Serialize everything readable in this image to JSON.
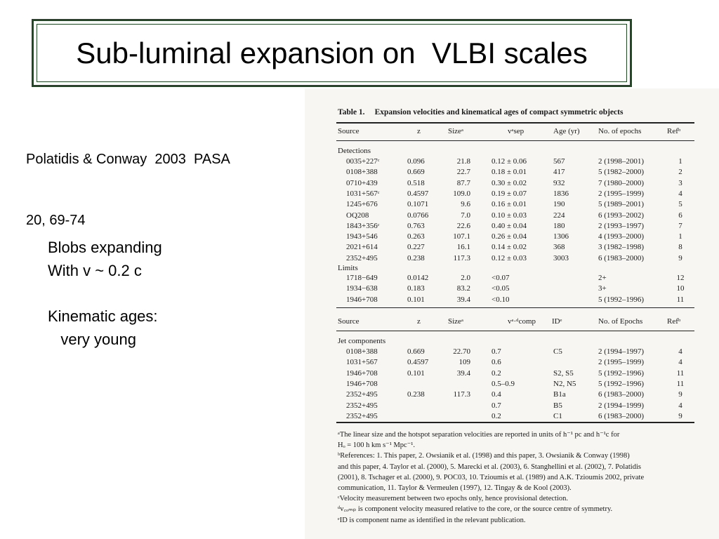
{
  "slide": {
    "title": "Sub-luminal expansion on  VLBI scales",
    "citation": [
      "Polatidis & Conway  2003  PASA",
      "20, 69-74"
    ],
    "bullets_a": [
      "Blobs expanding",
      "With v ~ 0.2 c"
    ],
    "bullets_b": [
      "Kinematic ages:",
      "   very young"
    ]
  },
  "table": {
    "caption_label": "Table 1.",
    "caption_text": "Expansion velocities and kinematical ages of compact symmetric objects",
    "header1": [
      "Source",
      "z",
      "Sizeᵃ",
      "vᵃsep",
      "Age (yr)",
      "No. of epochs",
      "Refᵇ"
    ],
    "section_detections": "Detections",
    "detections": [
      [
        "0035+227ᶜ",
        "0.096",
        "21.8",
        "0.12 ± 0.06",
        "567",
        "2 (1998–2001)",
        "1"
      ],
      [
        "0108+388",
        "0.669",
        "22.7",
        "0.18 ± 0.01",
        "417",
        "5 (1982–2000)",
        "2"
      ],
      [
        "0710+439",
        "0.518",
        "87.7",
        "0.30 ± 0.02",
        "932",
        "7 (1980–2000)",
        "3"
      ],
      [
        "1031+567ᶜ",
        "0.4597",
        "109.0",
        "0.19 ± 0.07",
        "1836",
        "2 (1995–1999)",
        "4"
      ],
      [
        "1245+676",
        "0.1071",
        "9.6",
        "0.16 ± 0.01",
        "190",
        "5 (1989–2001)",
        "5"
      ],
      [
        "OQ208",
        "0.0766",
        "7.0",
        "0.10 ± 0.03",
        "224",
        "6 (1993–2002)",
        "6"
      ],
      [
        "1843+356ᶜ",
        "0.763",
        "22.6",
        "0.40 ± 0.04",
        "180",
        "2 (1993–1997)",
        "7"
      ],
      [
        "1943+546",
        "0.263",
        "107.1",
        "0.26 ± 0.04",
        "1306",
        "4 (1993–2000)",
        "1"
      ],
      [
        "2021+614",
        "0.227",
        "16.1",
        "0.14 ± 0.02",
        "368",
        "3 (1982–1998)",
        "8"
      ],
      [
        "2352+495",
        "0.238",
        "117.3",
        "0.12 ± 0.03",
        "3003",
        "6 (1983–2000)",
        "9"
      ]
    ],
    "section_limits": "Limits",
    "limits": [
      [
        "1718−649",
        "0.0142",
        "2.0",
        "<0.07",
        "",
        "2+",
        "12"
      ],
      [
        "1934−638",
        "0.183",
        "83.2",
        "<0.05",
        "",
        "3+",
        "10"
      ],
      [
        "1946+708",
        "0.101",
        "39.4",
        "<0.10",
        "",
        "5 (1992–1996)",
        "11"
      ]
    ],
    "header2": [
      "Source",
      "z",
      "Sizeᵃ",
      "vᵃ·ᵈcomp",
      "IDᵉ",
      "No. of Epochs",
      "Refᵇ"
    ],
    "section_jets": "Jet components",
    "jets": [
      [
        "0108+388",
        "0.669",
        "22.70",
        "0.7",
        "C5",
        "2 (1994–1997)",
        "4"
      ],
      [
        "1031+567",
        "0.4597",
        "109",
        "0.6",
        "",
        "2 (1995–1999)",
        "4"
      ],
      [
        "1946+708",
        "0.101",
        "39.4",
        "0.2",
        "S2, S5",
        "5 (1992–1996)",
        "11"
      ],
      [
        "1946+708",
        "",
        "",
        "0.5–0.9",
        "N2, N5",
        "5 (1992–1996)",
        "11"
      ],
      [
        "2352+495",
        "0.238",
        "117.3",
        "0.4",
        "B1a",
        "6 (1983–2000)",
        "9"
      ],
      [
        "2352+495",
        "",
        "",
        "0.7",
        "B5",
        "2 (1994–1999)",
        "4"
      ],
      [
        "2352+495",
        "",
        "",
        "0.2",
        "C1",
        "6 (1983–2000)",
        "9"
      ]
    ],
    "notes": [
      "ᵃThe linear size and the hotspot separation velocities are reported in units of h⁻¹ pc and h⁻¹c for",
      "Hₒ = 100 h km s⁻¹ Mpc⁻¹.",
      "ᵇReferences: 1. This paper, 2. Owsianik et al. (1998) and this paper, 3. Owsianik & Conway (1998)",
      "and this paper, 4. Taylor et al. (2000), 5. Marecki et al. (2003), 6. Stanghellini et al. (2002), 7. Polatidis",
      "(2001), 8. Tschager et al. (2000), 9. POC03, 10. Tzioumis et al. (1989) and A.K. Tzioumis 2002, private",
      "communication, 11. Taylor & Vermeulen (1997), 12. Tingay & de Kool (2003).",
      "ᶜVelocity measurement between two epochs only, hence provisional detection.",
      "ᵈv꜀ₒₘₚ is component velocity measured relative to the core, or the source centre of symmetry.",
      "ᵉID is component name as identified in the relevant publication."
    ]
  }
}
